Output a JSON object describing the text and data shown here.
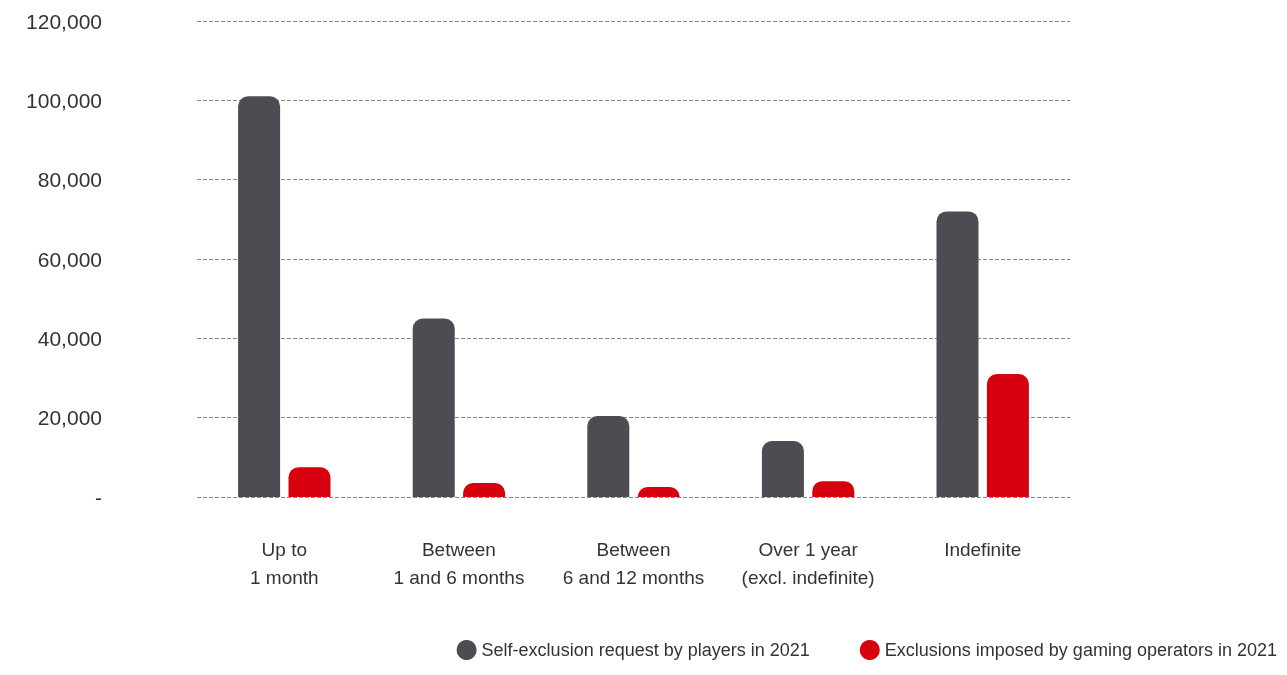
{
  "chart_data": {
    "type": "bar",
    "categories": [
      "Up to\n1 month",
      "Between\n1 and 6 months",
      "Between\n6 and 12 months",
      "Over 1 year\n(excl. indefinite)",
      "Indefinite"
    ],
    "series": [
      {
        "name": "Self-exclusion request by players in 2021",
        "color": "#4d4c52",
        "values": [
          101000,
          45000,
          20400,
          14100,
          72000
        ]
      },
      {
        "name": "Exclusions imposed by gaming operators in 2021",
        "color": "#d7000f",
        "values": [
          7500,
          3500,
          2500,
          4000,
          31000
        ]
      }
    ],
    "ylim": [
      0,
      120000
    ],
    "yticks": [
      {
        "value": 0,
        "label": "-"
      },
      {
        "value": 20000,
        "label": "20,000"
      },
      {
        "value": 40000,
        "label": "40,000"
      },
      {
        "value": 60000,
        "label": "60,000"
      },
      {
        "value": 80000,
        "label": "80,000"
      },
      {
        "value": 100000,
        "label": "100,000"
      },
      {
        "value": 120000,
        "label": "120,000"
      }
    ],
    "grid": "y",
    "legend": "bottom right"
  }
}
